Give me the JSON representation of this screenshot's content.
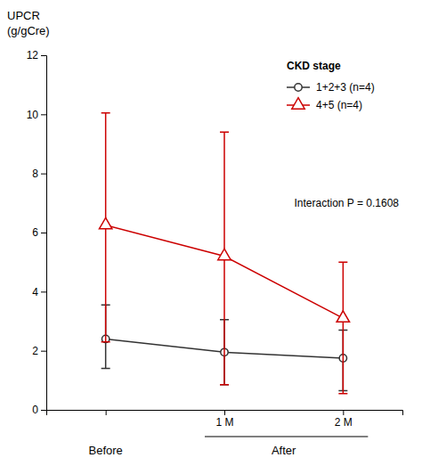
{
  "chart_data": {
    "type": "line",
    "ylabel": [
      "UPCR",
      "(g/gCre)"
    ],
    "categories": [
      null,
      "1 M",
      "2 M"
    ],
    "series": [
      {
        "name": "1+2+3 (n=4)",
        "color": "#333333",
        "marker": "circle",
        "values": [
          2.4,
          1.95,
          1.75
        ],
        "lower": [
          1.4,
          0.85,
          0.65
        ],
        "upper": [
          3.55,
          3.05,
          2.7
        ]
      },
      {
        "name": "4+5 (n=4)",
        "color": "#cc0000",
        "marker": "triangle",
        "values": [
          6.25,
          5.2,
          3.1
        ],
        "lower": [
          2.3,
          0.85,
          0.55
        ],
        "upper": [
          10.05,
          9.4,
          5.0
        ]
      }
    ],
    "ylim": [
      0,
      12
    ],
    "yticks": [
      0,
      2,
      4,
      6,
      8,
      10,
      12
    ],
    "grid": false,
    "legend": "upper right",
    "legend_title": "CKD stage",
    "annotations": [
      "Interaction P = 0.1608",
      "Before",
      "After"
    ]
  }
}
